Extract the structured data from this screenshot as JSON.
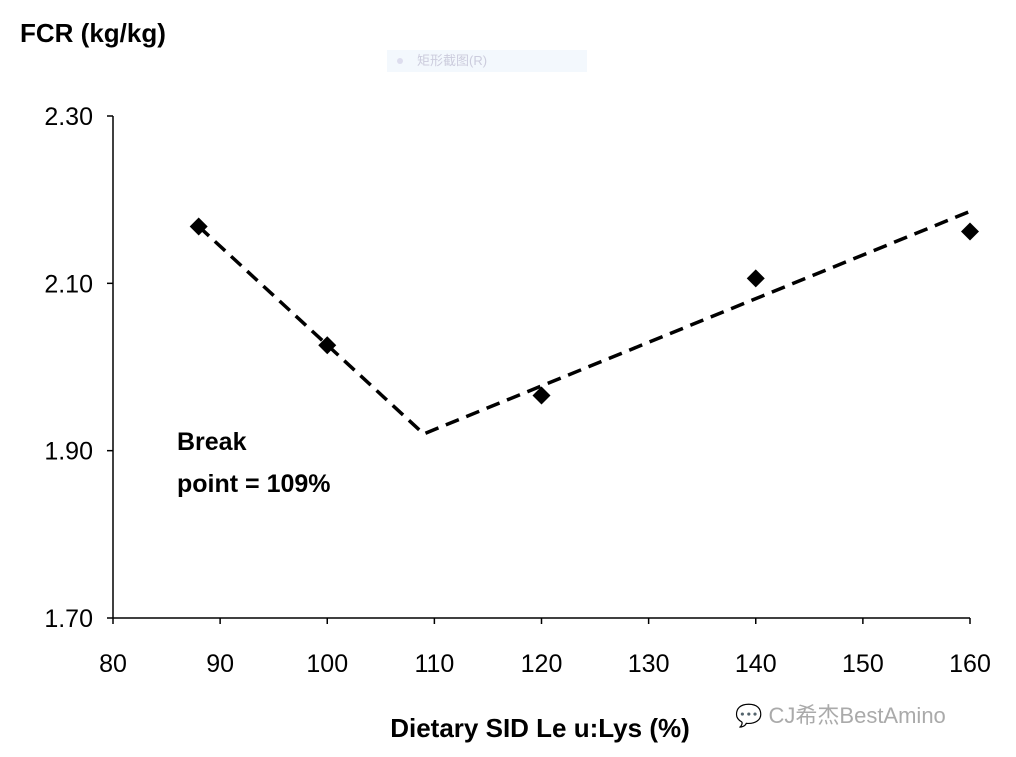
{
  "chart_data": {
    "type": "scatter",
    "y_title": "FCR (kg/kg)",
    "xlabel": "Dietary SID Le u:Lys (%)",
    "xlim": [
      80,
      160
    ],
    "ylim": [
      1.7,
      2.3
    ],
    "x_ticks": [
      "80",
      "90",
      "100",
      "110",
      "120",
      "130",
      "140",
      "150",
      "160"
    ],
    "y_ticks": [
      "1.70",
      "1.90",
      "2.10",
      "2.30"
    ],
    "grid": false,
    "points": {
      "x": [
        88,
        100,
        120,
        140,
        160
      ],
      "y": [
        2.168,
        2.026,
        1.966,
        2.106,
        2.162
      ]
    },
    "fit_line": {
      "style": "dashed",
      "x": [
        88,
        109,
        160
      ],
      "y": [
        2.168,
        1.92,
        2.186
      ]
    },
    "annotation": [
      "Break",
      "point = 109%"
    ],
    "marker": "diamond",
    "color": "#000000"
  },
  "watermarks": {
    "snip_label": "矩形截图(R)",
    "brand": "CJ希杰BestAmino"
  }
}
